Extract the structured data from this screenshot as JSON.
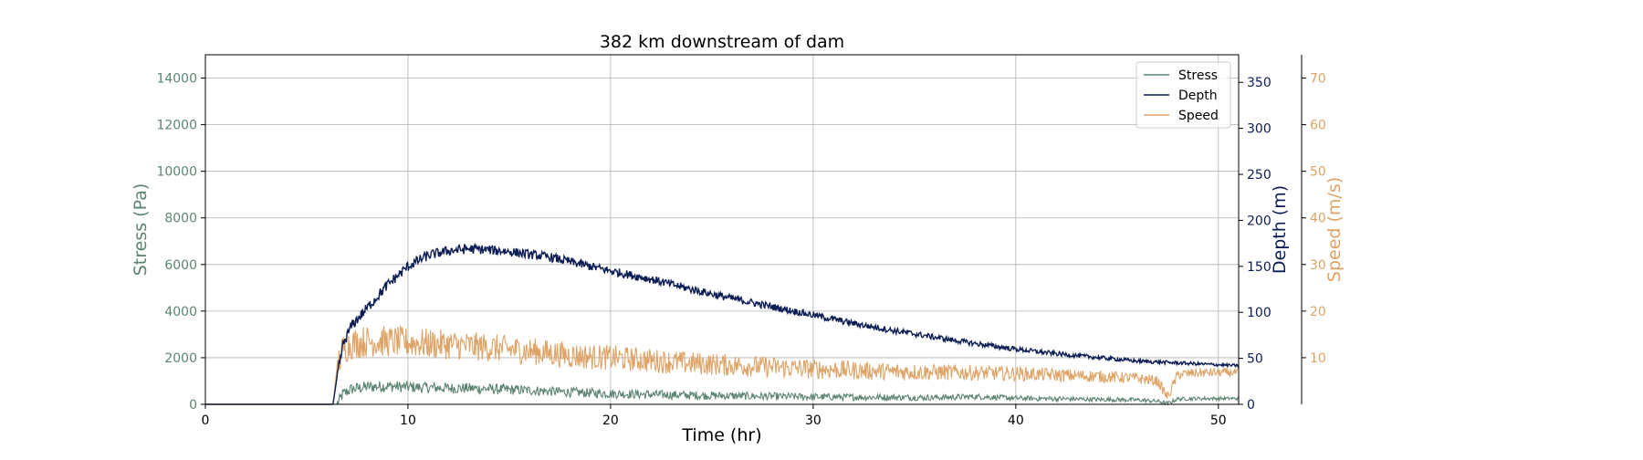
{
  "chart_data": {
    "type": "line",
    "title": "382 km downstream of dam",
    "xlabel": "Time (hr)",
    "xlim": [
      0,
      51
    ],
    "xticks": [
      0,
      10,
      20,
      30,
      40,
      50
    ],
    "grid": true,
    "legend": {
      "placement": "top-right",
      "entries": [
        "Stress",
        "Depth",
        "Speed"
      ]
    },
    "axes": {
      "stress": {
        "label": "Stress (Pa)",
        "ylim": [
          0,
          15000
        ],
        "ticks": [
          0,
          2000,
          4000,
          6000,
          8000,
          10000,
          12000,
          14000
        ],
        "color": "#5c8470"
      },
      "depth": {
        "label": "Depth (m)",
        "ylim": [
          0,
          380
        ],
        "ticks": [
          0,
          50,
          100,
          150,
          200,
          250,
          300,
          350
        ],
        "color": "#0c1d55"
      },
      "speed": {
        "label": "Speed (m/s)",
        "ylim": [
          0,
          75
        ],
        "ticks": [
          10,
          20,
          30,
          40,
          50,
          60,
          70
        ],
        "color": "#dea366"
      }
    },
    "series": [
      {
        "name": "Stress",
        "axis": "stress",
        "color": "#5c8470",
        "x": [
          0,
          6.3,
          6.5,
          6.8,
          7.2,
          8,
          9,
          10,
          11,
          12,
          13,
          14,
          15,
          16,
          17,
          18,
          19,
          20,
          22,
          24,
          26,
          28,
          30,
          32,
          34,
          36,
          38,
          39,
          40,
          42,
          44,
          46,
          47,
          47.5,
          48,
          49,
          50,
          51
        ],
        "y": [
          0,
          0,
          0,
          450,
          650,
          750,
          780,
          740,
          720,
          700,
          690,
          660,
          630,
          600,
          560,
          520,
          490,
          460,
          420,
          390,
          360,
          340,
          320,
          310,
          300,
          290,
          330,
          300,
          260,
          240,
          210,
          190,
          130,
          40,
          230,
          250,
          250,
          250
        ],
        "noise": 260
      },
      {
        "name": "Depth",
        "axis": "depth",
        "color": "#0c1d55",
        "x": [
          0,
          6.3,
          6.5,
          6.8,
          7.2,
          8,
          9,
          10,
          11,
          12,
          13,
          14,
          15,
          16,
          17,
          18,
          19,
          20,
          22,
          24,
          26,
          28,
          30,
          32,
          34,
          36,
          38,
          39,
          40,
          42,
          44,
          46,
          47,
          48,
          49,
          50,
          51
        ],
        "y": [
          0,
          0,
          30,
          65,
          85,
          105,
          130,
          150,
          162,
          167,
          169,
          168,
          166,
          163,
          160,
          155,
          150,
          145,
          136,
          125,
          115,
          106,
          97,
          88,
          80,
          73,
          66,
          63,
          60,
          55,
          51,
          47,
          46,
          45,
          44,
          43,
          42
        ],
        "noise": 6
      },
      {
        "name": "Speed",
        "axis": "speed",
        "color": "#dea366",
        "x": [
          0,
          6.3,
          6.5,
          6.8,
          7.2,
          8,
          9,
          10,
          11,
          12,
          13,
          14,
          15,
          16,
          17,
          18,
          19,
          20,
          22,
          24,
          26,
          28,
          30,
          32,
          34,
          36,
          38,
          40,
          42,
          44,
          46,
          47,
          47.5,
          48,
          49,
          50,
          51
        ],
        "y": [
          0,
          0,
          8,
          12,
          13,
          13.5,
          13.5,
          13.3,
          13,
          12.8,
          12.5,
          12.2,
          11.8,
          11.4,
          11,
          10.5,
          10.2,
          10,
          9.4,
          8.8,
          8.4,
          8,
          7.6,
          7.3,
          7,
          6.9,
          6.8,
          6.6,
          6.3,
          6,
          5.6,
          5,
          1.5,
          6.4,
          6.8,
          6.8,
          6.8
        ],
        "noise": 3.5
      }
    ]
  }
}
